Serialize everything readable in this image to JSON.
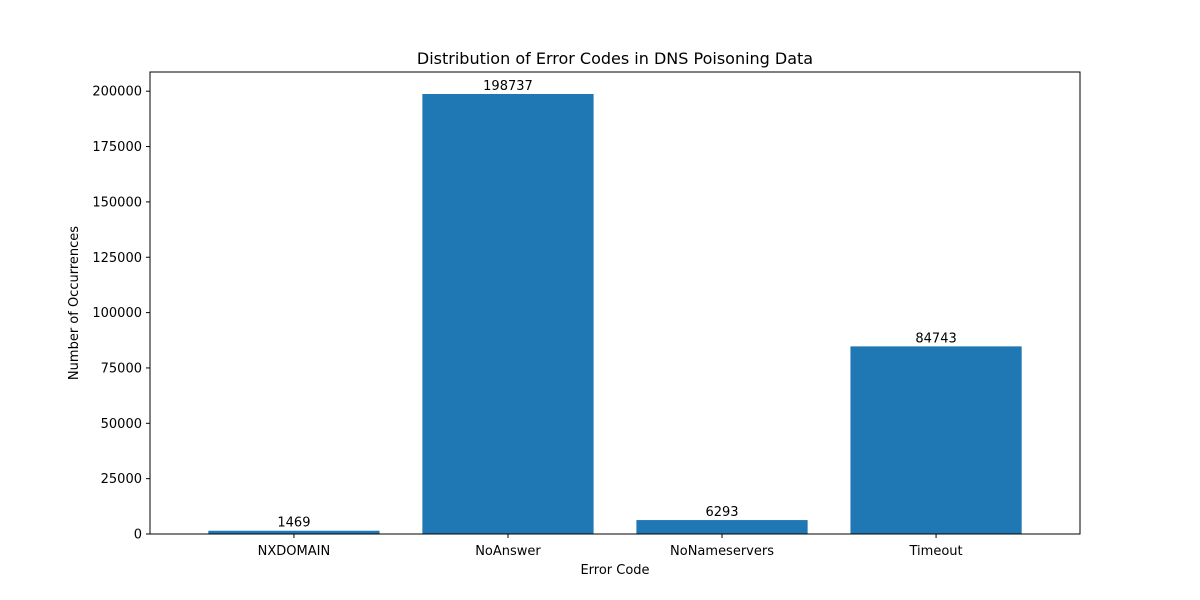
{
  "chart_data": {
    "type": "bar",
    "title": "Distribution of Error Codes in DNS Poisoning Data",
    "xlabel": "Error Code",
    "ylabel": "Number of Occurrences",
    "categories": [
      "NXDOMAIN",
      "NoAnswer",
      "NoNameservers",
      "Timeout"
    ],
    "values": [
      1469,
      198737,
      6293,
      84743
    ],
    "value_labels": [
      "1469",
      "198737",
      "6293",
      "84743"
    ],
    "ylim": [
      0,
      208673.85
    ],
    "yticks": [
      0,
      25000,
      50000,
      75000,
      100000,
      125000,
      150000,
      175000,
      200000
    ],
    "ytick_labels": [
      "0",
      "25000",
      "50000",
      "75000",
      "100000",
      "125000",
      "150000",
      "175000",
      "200000"
    ],
    "grid": false,
    "legend": "none",
    "bar_color": "#1f77b4"
  }
}
